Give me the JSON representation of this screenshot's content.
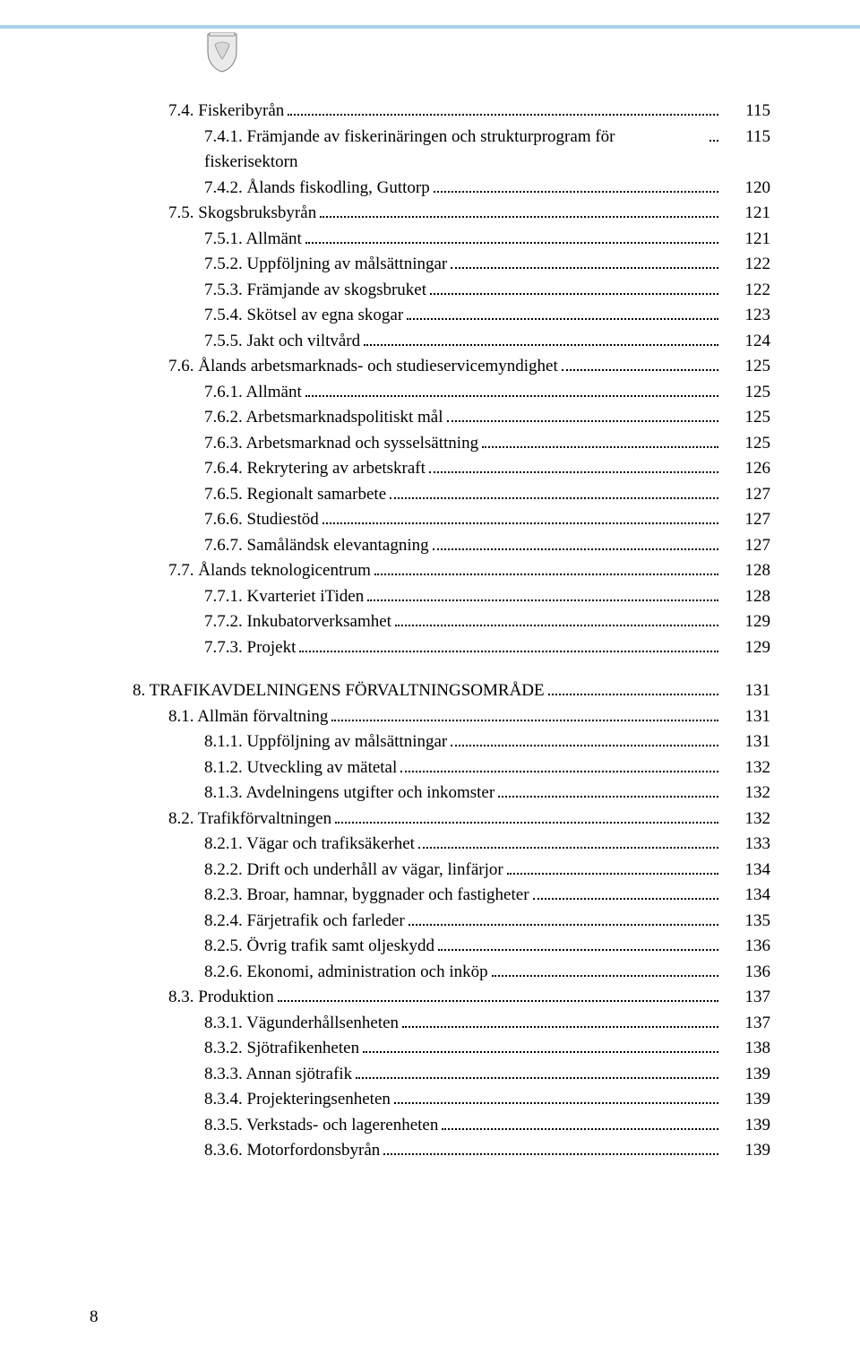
{
  "page_number": "8",
  "font_size_pt": 19,
  "colors": {
    "text": "#000000",
    "background": "#ffffff",
    "header_line": "#a9d0e8",
    "crest_body": "#eaeaea",
    "crest_stroke": "#7a7a7a"
  },
  "toc": [
    {
      "label": "7.4. Fiskeribyrån",
      "page": "115",
      "indent": 1
    },
    {
      "label": "7.4.1. Främjande av fiskerinäringen och strukturprogram för fiskerisektorn",
      "page": "115",
      "indent": 2
    },
    {
      "label": "7.4.2. Ålands fiskodling, Guttorp",
      "page": "120",
      "indent": 2
    },
    {
      "label": "7.5. Skogsbruksbyrån",
      "page": "121",
      "indent": 1
    },
    {
      "label": "7.5.1. Allmänt",
      "page": "121",
      "indent": 2
    },
    {
      "label": "7.5.2. Uppföljning av målsättningar",
      "page": "122",
      "indent": 2
    },
    {
      "label": "7.5.3. Främjande av skogsbruket",
      "page": "122",
      "indent": 2
    },
    {
      "label": "7.5.4. Skötsel av egna skogar",
      "page": "123",
      "indent": 2
    },
    {
      "label": "7.5.5. Jakt och viltvård",
      "page": "124",
      "indent": 2
    },
    {
      "label": "7.6. Ålands arbetsmarknads- och studieservicemyndighet",
      "page": "125",
      "indent": 1
    },
    {
      "label": "7.6.1. Allmänt",
      "page": "125",
      "indent": 2
    },
    {
      "label": "7.6.2. Arbetsmarknadspolitiskt mål",
      "page": "125",
      "indent": 2
    },
    {
      "label": "7.6.3. Arbetsmarknad och sysselsättning",
      "page": "125",
      "indent": 2
    },
    {
      "label": "7.6.4. Rekrytering av arbetskraft",
      "page": "126",
      "indent": 2
    },
    {
      "label": "7.6.5. Regionalt samarbete",
      "page": "127",
      "indent": 2
    },
    {
      "label": "7.6.6. Studiestöd",
      "page": "127",
      "indent": 2
    },
    {
      "label": "7.6.7. Samåländsk elevantagning",
      "page": "127",
      "indent": 2
    },
    {
      "label": "7.7. Ålands teknologicentrum",
      "page": "128",
      "indent": 1
    },
    {
      "label": "7.7.1. Kvarteriet iTiden",
      "page": "128",
      "indent": 2
    },
    {
      "label": "7.7.2. Inkubatorverksamhet",
      "page": "129",
      "indent": 2
    },
    {
      "label": "7.7.3. Projekt",
      "page": "129",
      "indent": 2
    },
    {
      "gap": true
    },
    {
      "label": "8. TRAFIKAVDELNINGENS FÖRVALTNINGSOMRÅDE",
      "page": "131",
      "indent": 0,
      "chapter": true
    },
    {
      "label": "8.1. Allmän förvaltning",
      "page": "131",
      "indent": 1
    },
    {
      "label": "8.1.1. Uppföljning av målsättningar",
      "page": "131",
      "indent": 2
    },
    {
      "label": "8.1.2. Utveckling av mätetal",
      "page": "132",
      "indent": 2
    },
    {
      "label": "8.1.3. Avdelningens utgifter och inkomster",
      "page": "132",
      "indent": 2
    },
    {
      "label": "8.2. Trafikförvaltningen",
      "page": "132",
      "indent": 1
    },
    {
      "label": "8.2.1. Vägar och trafiksäkerhet",
      "page": "133",
      "indent": 2
    },
    {
      "label": "8.2.2. Drift och underhåll av vägar, linfärjor",
      "page": "134",
      "indent": 2
    },
    {
      "label": "8.2.3. Broar, hamnar, byggnader och fastigheter",
      "page": "134",
      "indent": 2
    },
    {
      "label": "8.2.4. Färjetrafik och farleder",
      "page": "135",
      "indent": 2
    },
    {
      "label": "8.2.5. Övrig trafik samt oljeskydd",
      "page": "136",
      "indent": 2
    },
    {
      "label": "8.2.6. Ekonomi, administration och inköp",
      "page": "136",
      "indent": 2
    },
    {
      "label": "8.3. Produktion",
      "page": "137",
      "indent": 1
    },
    {
      "label": "8.3.1. Vägunderhållsenheten",
      "page": "137",
      "indent": 2
    },
    {
      "label": "8.3.2. Sjötrafikenheten",
      "page": "138",
      "indent": 2
    },
    {
      "label": "8.3.3. Annan sjötrafik",
      "page": "139",
      "indent": 2
    },
    {
      "label": "8.3.4. Projekteringsenheten",
      "page": "139",
      "indent": 2
    },
    {
      "label": "8.3.5. Verkstads- och lagerenheten",
      "page": "139",
      "indent": 2
    },
    {
      "label": "8.3.6. Motorfordonsbyrån",
      "page": "139",
      "indent": 2
    }
  ]
}
